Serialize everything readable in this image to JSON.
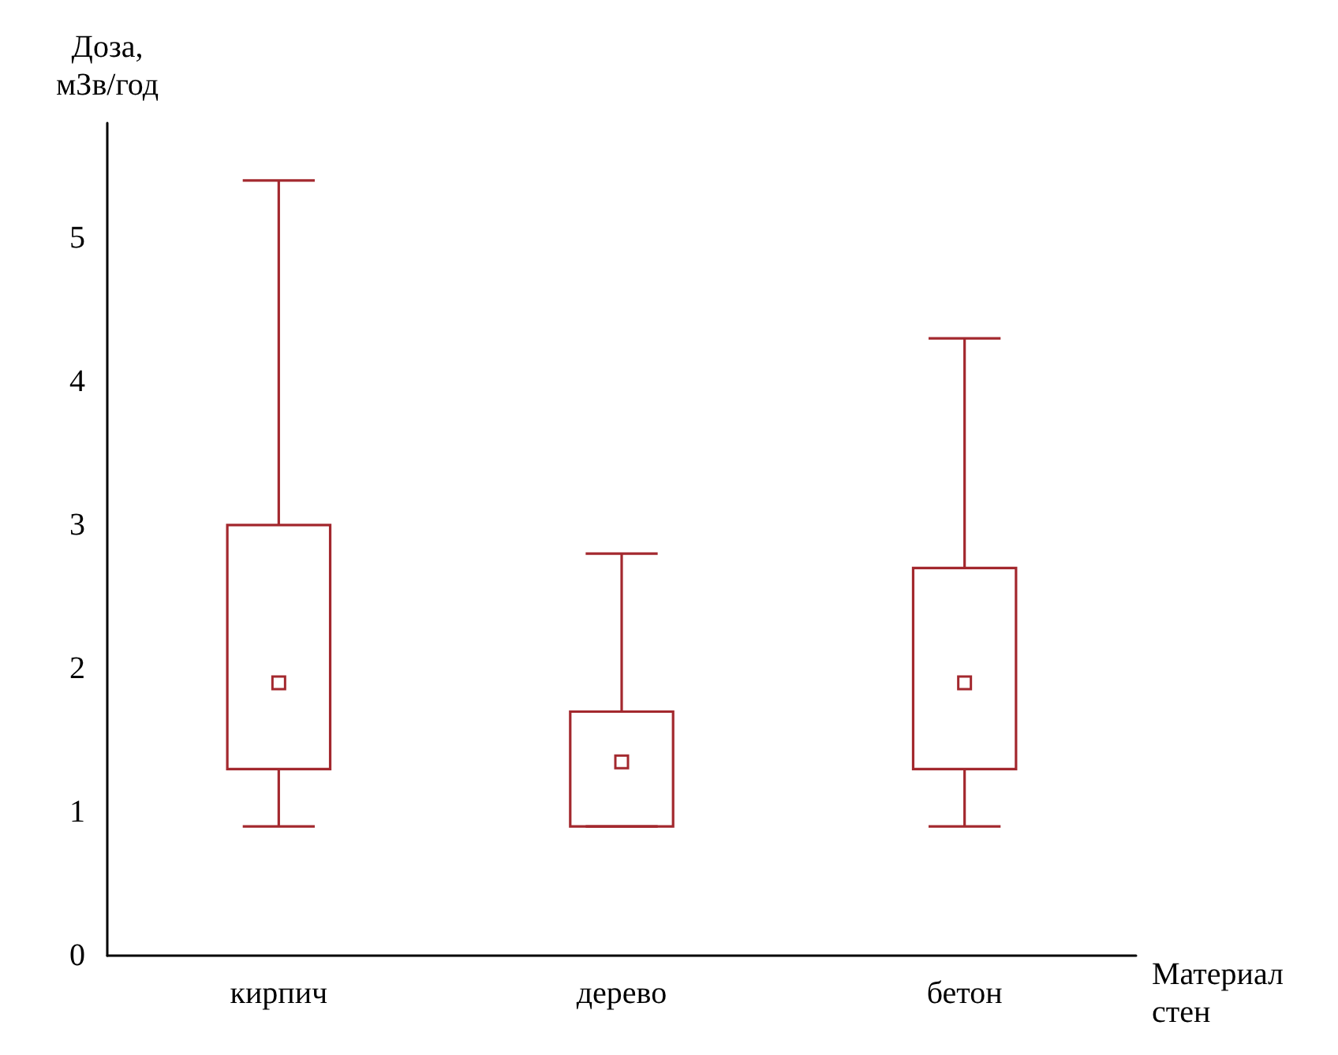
{
  "chart_data": {
    "type": "box",
    "ylabel": "Доза,\nмЗв/год",
    "xlabel": "Материал\nстен",
    "categories": [
      "кирпич",
      "дерево",
      "бетон"
    ],
    "color": "#a3282e",
    "marker": "square",
    "boxes": [
      {
        "low": 0.9,
        "q1": 1.3,
        "median": 1.9,
        "q3": 3.0,
        "high": 5.4
      },
      {
        "low": 0.9,
        "q1": 0.9,
        "median": 1.35,
        "q3": 1.7,
        "high": 2.8
      },
      {
        "low": 0.9,
        "q1": 1.3,
        "median": 1.9,
        "q3": 2.7,
        "high": 4.3
      }
    ],
    "ylim": [
      0,
      5.8
    ],
    "yticks": [
      0,
      1,
      2,
      3,
      4,
      5
    ]
  }
}
